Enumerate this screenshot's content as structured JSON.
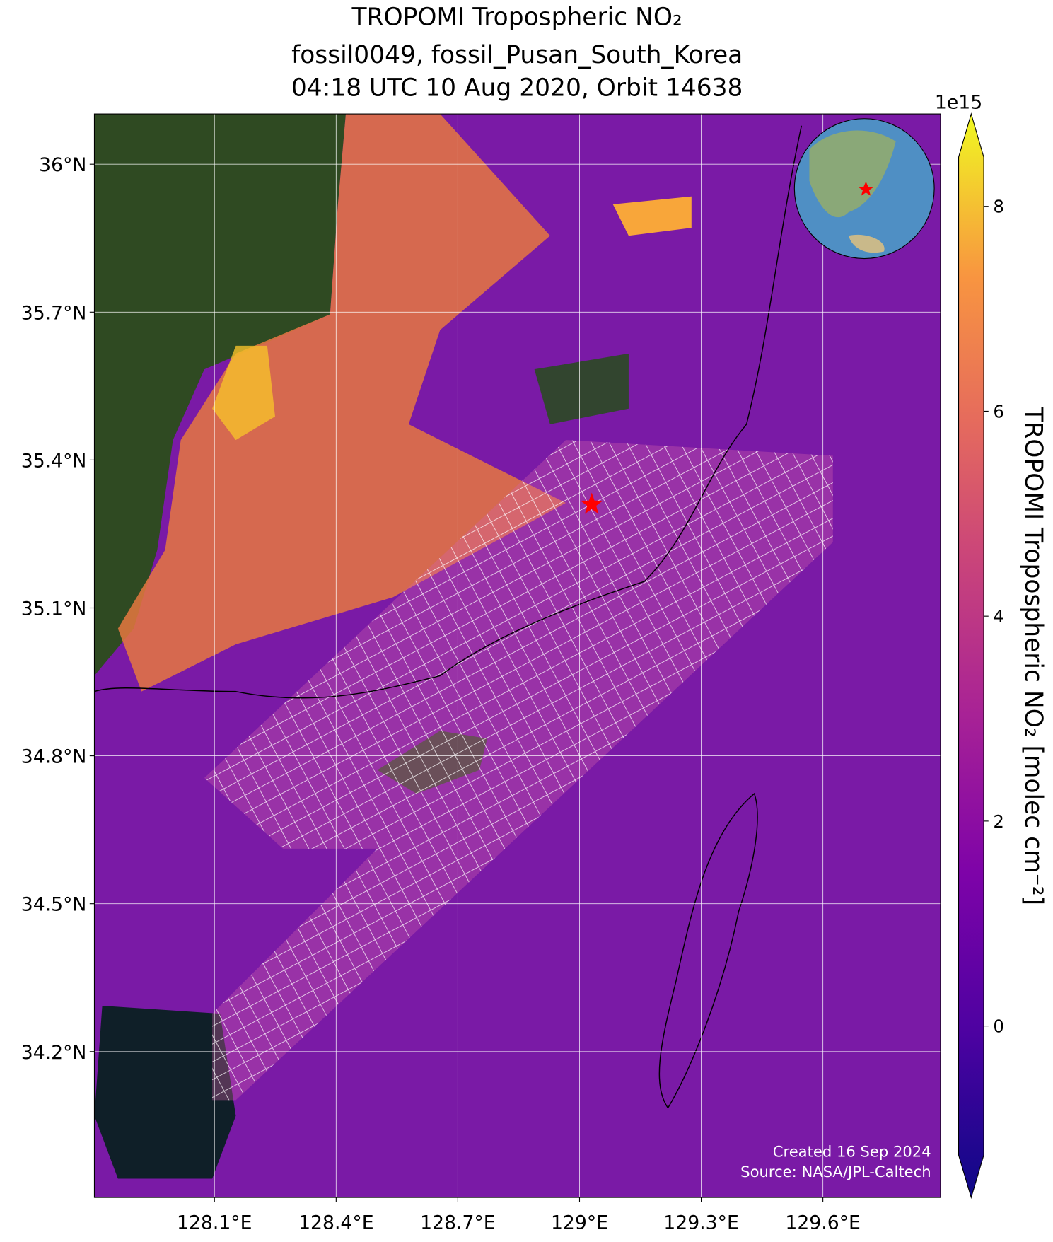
{
  "chart_data": {
    "type": "map",
    "title": [
      "TROPOMI Tropospheric NO₂",
      "fossil0049, fossil_Pusan_South_Korea",
      "04:18 UTC 10 Aug 2020, Orbit 14638"
    ],
    "xlim": [
      127.804,
      129.89
    ],
    "ylim": [
      33.904,
      36.102
    ],
    "xticks": [
      {
        "value": 128.1,
        "label": "128.1°E"
      },
      {
        "value": 128.4,
        "label": "128.4°E"
      },
      {
        "value": 128.7,
        "label": "128.7°E"
      },
      {
        "value": 129.0,
        "label": "129°E"
      },
      {
        "value": 129.3,
        "label": "129.3°E"
      },
      {
        "value": 129.6,
        "label": "129.6°E"
      }
    ],
    "yticks": [
      {
        "value": 34.2,
        "label": "34.2°N"
      },
      {
        "value": 34.5,
        "label": "34.5°N"
      },
      {
        "value": 34.8,
        "label": "34.8°N"
      },
      {
        "value": 35.1,
        "label": "35.1°N"
      },
      {
        "value": 35.4,
        "label": "35.4°N"
      },
      {
        "value": 35.7,
        "label": "35.7°N"
      },
      {
        "value": 36.0,
        "label": "36°N"
      }
    ],
    "grid": true,
    "site": {
      "lon": 129.03,
      "lat": 35.31,
      "color": "#ff0000"
    },
    "colorbar": {
      "label": "TROPOMI Tropospheric NO₂ [molec cm⁻²]",
      "offset_label": "1e15",
      "clim": [
        -1.26,
        8.48
      ],
      "ticks": [
        0,
        2,
        4,
        6,
        8
      ],
      "colormap": "plasma"
    },
    "credits": [
      "Created 16 Sep 2024",
      "Source: NASA/JPL-Caltech"
    ]
  }
}
